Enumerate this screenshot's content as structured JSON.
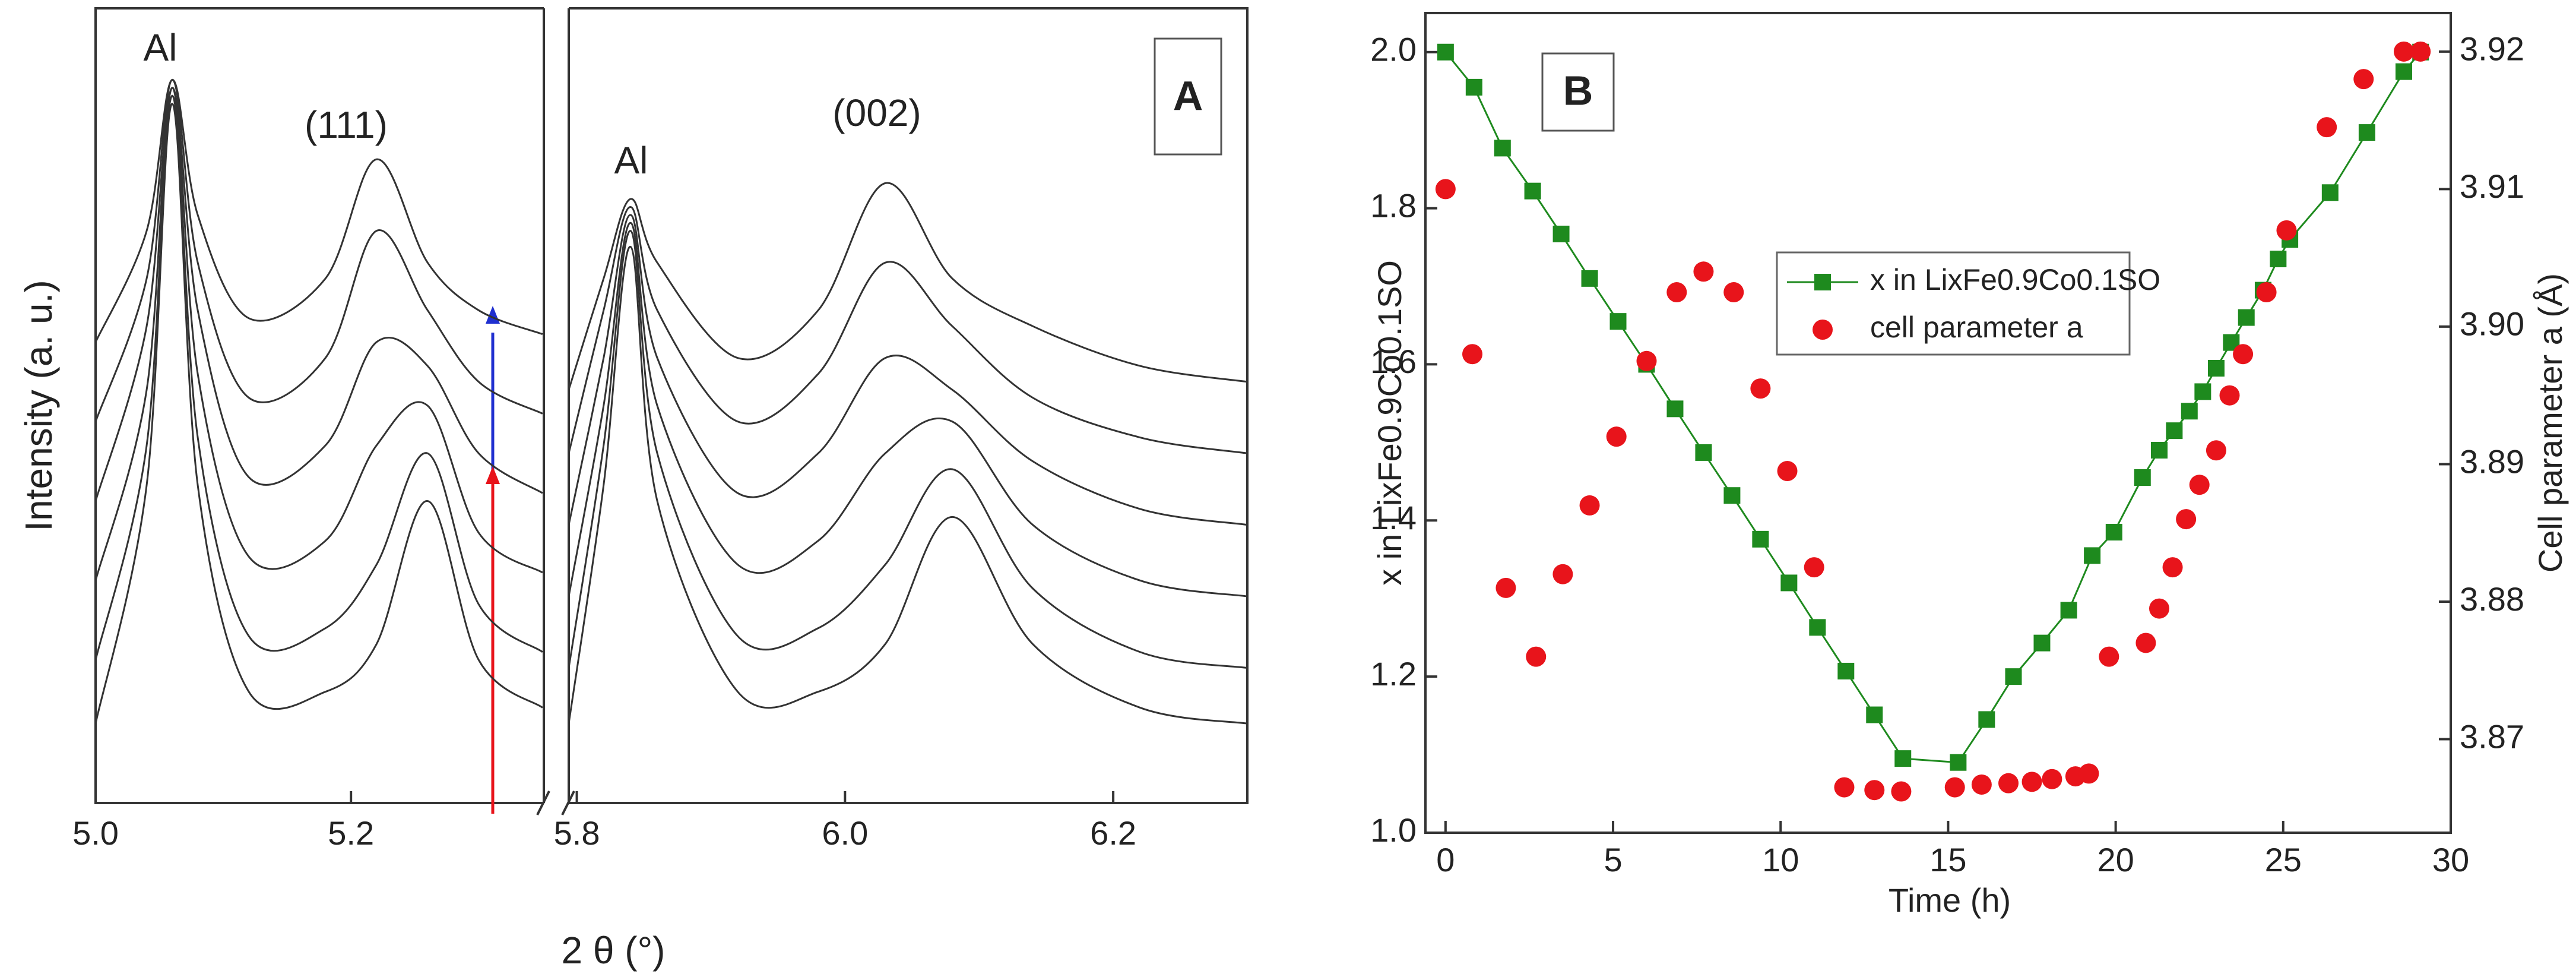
{
  "chart_data": [
    {
      "type": "waterfall",
      "title": "A",
      "x_label": "2 θ (°)",
      "y_label": "Intensity (a. u.)",
      "annotations": [
        "Al",
        "(111)",
        "Al",
        "(002)"
      ],
      "segments": [
        {
          "xlim": [
            5.0,
            5.351
          ],
          "xticks": [
            {
              "value": 5.0,
              "label": "5.0"
            },
            {
              "value": 5.2,
              "label": "5.2"
            }
          ]
        },
        {
          "xlim": [
            5.794,
            6.3
          ],
          "xticks": [
            {
              "value": 5.8,
              "label": "5.8"
            },
            {
              "value": 6.0,
              "label": "6.0"
            },
            {
              "value": 6.2,
              "label": "6.2"
            }
          ]
        }
      ],
      "ylim": [
        0,
        100
      ],
      "x": [
        5.0,
        5.04,
        5.06,
        5.08,
        5.12,
        5.18,
        5.22,
        5.26,
        5.3,
        5.35,
        null,
        5.794,
        5.82,
        5.84,
        5.86,
        5.92,
        5.98,
        6.03,
        6.08,
        6.14,
        6.22,
        6.3
      ],
      "series": [
        {
          "color": "#333333",
          "values": [
            10,
            40,
            88,
            40,
            14,
            14,
            20,
            38,
            18,
            12,
            null,
            10,
            40,
            70,
            38,
            14,
            14,
            20,
            36,
            20,
            12,
            10
          ]
        },
        {
          "color": "#333333",
          "values": [
            18,
            45,
            89,
            46,
            21,
            22,
            30,
            44,
            25,
            19,
            null,
            17,
            45,
            72,
            44,
            21,
            22,
            30,
            42,
            27,
            19,
            17
          ]
        },
        {
          "color": "#333333",
          "values": [
            28,
            52,
            90,
            54,
            31,
            33,
            45,
            50,
            34,
            29,
            null,
            26,
            50,
            73,
            50,
            30,
            33,
            44,
            48,
            35,
            28,
            26
          ]
        },
        {
          "color": "#333333",
          "values": [
            38,
            60,
            90,
            62,
            41,
            45,
            58,
            55,
            44,
            39,
            null,
            35,
            56,
            74,
            56,
            39,
            44,
            56,
            52,
            43,
            37,
            35
          ]
        },
        {
          "color": "#333333",
          "values": [
            48,
            66,
            91,
            68,
            51,
            56,
            72,
            62,
            53,
            49,
            null,
            44,
            62,
            75,
            62,
            48,
            54,
            68,
            60,
            51,
            46,
            44
          ]
        },
        {
          "color": "#333333",
          "values": [
            58,
            72,
            91,
            74,
            61,
            66,
            81,
            68,
            62,
            59,
            null,
            52,
            66,
            76,
            68,
            56,
            62,
            78,
            66,
            60,
            55,
            53
          ]
        }
      ]
    },
    {
      "type": "line_scatter",
      "title": "B",
      "x_label": "Time (h)",
      "y_label": "x in LixFe0.9Co0.1SO",
      "y2_label": "Cell parameter a (Å)",
      "xlim": [
        -0.6,
        30
      ],
      "xticks": [
        0,
        5,
        10,
        15,
        20,
        25,
        30
      ],
      "ylim": [
        1.0,
        2.05
      ],
      "yticks": [
        {
          "value": 1.0,
          "label": "1.0"
        },
        {
          "value": 1.2,
          "label": "1.2"
        },
        {
          "value": 1.4,
          "label": "1.4"
        },
        {
          "value": 1.6,
          "label": "1.6"
        },
        {
          "value": 1.8,
          "label": "1.8"
        },
        {
          "value": 2.0,
          "label": "2.0"
        }
      ],
      "y2lim": [
        3.8632,
        3.9228
      ],
      "y2ticks": [
        3.87,
        3.88,
        3.89,
        3.9,
        3.91,
        3.92
      ],
      "y2tick_labels": [
        "3.87",
        "3.88",
        "3.89",
        "3.90",
        "3.91",
        "3.92"
      ],
      "series": [
        {
          "name": "x in LixFe0.9Co0.1SO",
          "color": "#1e8a1e",
          "marker": "square",
          "x": [
            0,
            0.85,
            1.7,
            2.6,
            3.45,
            4.3,
            5.15,
            6.0,
            6.85,
            7.7,
            8.55,
            9.4,
            10.25,
            11.1,
            11.95,
            12.8,
            13.65,
            15.3,
            16.15,
            16.95,
            17.8,
            18.6,
            19.3,
            19.95,
            20.8,
            21.3,
            21.75,
            22.2,
            22.6,
            23.0,
            23.45,
            23.9,
            24.4,
            24.85,
            25.2,
            26.4,
            27.5,
            28.6,
            29.1
          ],
          "values": [
            2.0,
            1.955,
            1.877,
            1.822,
            1.767,
            1.71,
            1.655,
            1.6,
            1.543,
            1.487,
            1.432,
            1.376,
            1.32,
            1.263,
            1.207,
            1.151,
            1.095,
            1.09,
            1.145,
            1.2,
            1.243,
            1.285,
            1.355,
            1.385,
            1.455,
            1.49,
            1.515,
            1.54,
            1.565,
            1.595,
            1.628,
            1.66,
            1.695,
            1.735,
            1.76,
            1.82,
            1.897,
            1.975,
            2.0
          ]
        },
        {
          "name": "cell parameter a",
          "color": "#e8141b",
          "marker": "circle",
          "axis": "y2",
          "x": [
            0,
            0.8,
            1.8,
            2.7,
            3.5,
            4.3,
            5.1,
            6.0,
            6.9,
            7.7,
            8.6,
            9.4,
            10.2,
            11.0,
            11.9,
            12.8,
            13.6,
            15.2,
            16.0,
            16.8,
            17.5,
            18.1,
            18.8,
            19.2,
            19.8,
            20.9,
            21.3,
            21.7,
            22.1,
            22.5,
            23.0,
            23.4,
            23.8,
            24.5,
            25.1,
            26.3,
            27.4,
            28.6,
            29.1
          ],
          "values": [
            3.91,
            3.898,
            3.881,
            3.876,
            3.882,
            3.887,
            3.892,
            3.8975,
            3.9025,
            3.904,
            3.9025,
            3.8955,
            3.8895,
            3.8825,
            3.8665,
            3.8663,
            3.8662,
            3.8665,
            3.8667,
            3.8668,
            3.8669,
            3.8671,
            3.8673,
            3.8675,
            3.876,
            3.877,
            3.8795,
            3.8825,
            3.886,
            3.8885,
            3.891,
            3.895,
            3.898,
            3.9025,
            3.907,
            3.9145,
            3.918,
            3.92,
            3.92
          ]
        }
      ]
    }
  ]
}
